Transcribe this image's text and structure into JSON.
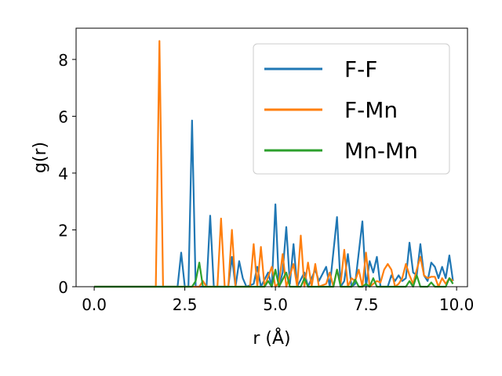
{
  "chart_data": {
    "type": "line",
    "xlabel": "r (Å)",
    "ylabel": "g(r)",
    "xlim": [
      -0.5,
      10.3
    ],
    "ylim": [
      0,
      9.1
    ],
    "xticks": [
      0.0,
      2.5,
      5.0,
      7.5,
      10.0
    ],
    "xtick_labels": [
      "0.0",
      "2.5",
      "5.0",
      "7.5",
      "10.0"
    ],
    "yticks": [
      0,
      2,
      4,
      6,
      8
    ],
    "ytick_labels": [
      "0",
      "2",
      "4",
      "6",
      "8"
    ],
    "grid": false,
    "legend_position": "top-right",
    "series": [
      {
        "name": "F-F",
        "color": "#1f77b4",
        "points": [
          [
            0,
            0
          ],
          [
            2.3,
            0
          ],
          [
            2.4,
            1.2
          ],
          [
            2.5,
            0
          ],
          [
            2.6,
            0
          ],
          [
            2.7,
            5.85
          ],
          [
            2.8,
            0
          ],
          [
            3.1,
            0
          ],
          [
            3.2,
            2.5
          ],
          [
            3.3,
            0
          ],
          [
            3.7,
            0
          ],
          [
            3.8,
            1.05
          ],
          [
            3.9,
            0
          ],
          [
            4.0,
            0.9
          ],
          [
            4.1,
            0.3
          ],
          [
            4.2,
            0
          ],
          [
            4.4,
            0.1
          ],
          [
            4.5,
            0.7
          ],
          [
            4.6,
            0
          ],
          [
            4.8,
            0.5
          ],
          [
            4.9,
            0
          ],
          [
            5.0,
            2.9
          ],
          [
            5.1,
            0
          ],
          [
            5.2,
            0.5
          ],
          [
            5.3,
            2.1
          ],
          [
            5.4,
            0.1
          ],
          [
            5.5,
            1.5
          ],
          [
            5.6,
            0
          ],
          [
            5.8,
            0.5
          ],
          [
            5.9,
            0
          ],
          [
            6.1,
            0.6
          ],
          [
            6.2,
            0.2
          ],
          [
            6.4,
            0.7
          ],
          [
            6.5,
            0
          ],
          [
            6.7,
            2.45
          ],
          [
            6.8,
            0
          ],
          [
            6.9,
            0.2
          ],
          [
            7.0,
            1.15
          ],
          [
            7.1,
            0
          ],
          [
            7.2,
            0.1
          ],
          [
            7.4,
            2.3
          ],
          [
            7.5,
            0
          ],
          [
            7.6,
            0.9
          ],
          [
            7.7,
            0.5
          ],
          [
            7.8,
            1.05
          ],
          [
            7.9,
            0
          ],
          [
            8.1,
            0
          ],
          [
            8.2,
            0.4
          ],
          [
            8.3,
            0.2
          ],
          [
            8.4,
            0.4
          ],
          [
            8.5,
            0.2
          ],
          [
            8.6,
            0.3
          ],
          [
            8.7,
            1.55
          ],
          [
            8.8,
            0.5
          ],
          [
            8.9,
            0.4
          ],
          [
            9.0,
            1.5
          ],
          [
            9.1,
            0.4
          ],
          [
            9.2,
            0.2
          ],
          [
            9.3,
            0.85
          ],
          [
            9.4,
            0.7
          ],
          [
            9.5,
            0.3
          ],
          [
            9.6,
            0.7
          ],
          [
            9.7,
            0.3
          ],
          [
            9.8,
            1.1
          ],
          [
            9.9,
            0.2
          ]
        ]
      },
      {
        "name": "F-Mn",
        "color": "#ff7f0e",
        "points": [
          [
            0,
            0
          ],
          [
            1.7,
            0
          ],
          [
            1.8,
            8.65
          ],
          [
            1.9,
            0
          ],
          [
            2.9,
            0
          ],
          [
            3.0,
            0.2
          ],
          [
            3.1,
            0
          ],
          [
            3.4,
            0
          ],
          [
            3.5,
            2.4
          ],
          [
            3.6,
            0
          ],
          [
            3.7,
            0
          ],
          [
            3.8,
            2.0
          ],
          [
            3.9,
            0
          ],
          [
            4.3,
            0
          ],
          [
            4.4,
            1.5
          ],
          [
            4.5,
            0
          ],
          [
            4.6,
            1.4
          ],
          [
            4.7,
            0
          ],
          [
            4.9,
            0.7
          ],
          [
            5.0,
            0
          ],
          [
            5.1,
            0.15
          ],
          [
            5.2,
            1.15
          ],
          [
            5.3,
            0
          ],
          [
            5.5,
            0.8
          ],
          [
            5.6,
            0
          ],
          [
            5.7,
            1.8
          ],
          [
            5.8,
            0
          ],
          [
            5.9,
            0.85
          ],
          [
            6.0,
            0
          ],
          [
            6.1,
            0.8
          ],
          [
            6.2,
            0
          ],
          [
            6.4,
            0.1
          ],
          [
            6.5,
            0.5
          ],
          [
            6.6,
            0
          ],
          [
            6.7,
            0.6
          ],
          [
            6.8,
            0.1
          ],
          [
            6.9,
            1.3
          ],
          [
            7.0,
            0
          ],
          [
            7.1,
            0.3
          ],
          [
            7.2,
            0.2
          ],
          [
            7.3,
            0.6
          ],
          [
            7.4,
            0
          ],
          [
            7.5,
            1.2
          ],
          [
            7.6,
            0
          ],
          [
            7.8,
            0.2
          ],
          [
            7.9,
            0.15
          ],
          [
            8.0,
            0.6
          ],
          [
            8.1,
            0.8
          ],
          [
            8.2,
            0.6
          ],
          [
            8.3,
            0
          ],
          [
            8.4,
            0.1
          ],
          [
            8.5,
            0.3
          ],
          [
            8.6,
            0.8
          ],
          [
            8.7,
            0.4
          ],
          [
            8.8,
            0.1
          ],
          [
            8.9,
            0.6
          ],
          [
            9.0,
            1.05
          ],
          [
            9.1,
            0.4
          ],
          [
            9.2,
            0.3
          ],
          [
            9.3,
            0.35
          ],
          [
            9.4,
            0.35
          ],
          [
            9.5,
            0
          ],
          [
            9.6,
            0.3
          ],
          [
            9.7,
            0.1
          ],
          [
            9.8,
            0.3
          ],
          [
            9.9,
            0.2
          ]
        ]
      },
      {
        "name": "Mn-Mn",
        "color": "#2ca02c",
        "points": [
          [
            0,
            0
          ],
          [
            2.7,
            0
          ],
          [
            2.8,
            0.2
          ],
          [
            2.9,
            0.85
          ],
          [
            3.0,
            0
          ],
          [
            4.7,
            0
          ],
          [
            4.8,
            0.2
          ],
          [
            4.9,
            0
          ],
          [
            5.0,
            0.6
          ],
          [
            5.1,
            0
          ],
          [
            5.3,
            0.5
          ],
          [
            5.4,
            0
          ],
          [
            5.7,
            0
          ],
          [
            5.8,
            0.3
          ],
          [
            5.9,
            0
          ],
          [
            6.6,
            0
          ],
          [
            6.7,
            0.6
          ],
          [
            6.8,
            0
          ],
          [
            7.1,
            0
          ],
          [
            7.2,
            0.25
          ],
          [
            7.3,
            0
          ],
          [
            7.4,
            0
          ],
          [
            7.5,
            0.1
          ],
          [
            7.6,
            0
          ],
          [
            7.7,
            0.3
          ],
          [
            7.8,
            0
          ],
          [
            8.6,
            0
          ],
          [
            8.7,
            0.2
          ],
          [
            8.8,
            0
          ],
          [
            8.9,
            0.4
          ],
          [
            9.0,
            0
          ],
          [
            9.2,
            0
          ],
          [
            9.3,
            0.15
          ],
          [
            9.4,
            0
          ],
          [
            9.7,
            0
          ],
          [
            9.8,
            0.3
          ],
          [
            9.9,
            0.1
          ]
        ]
      }
    ]
  }
}
